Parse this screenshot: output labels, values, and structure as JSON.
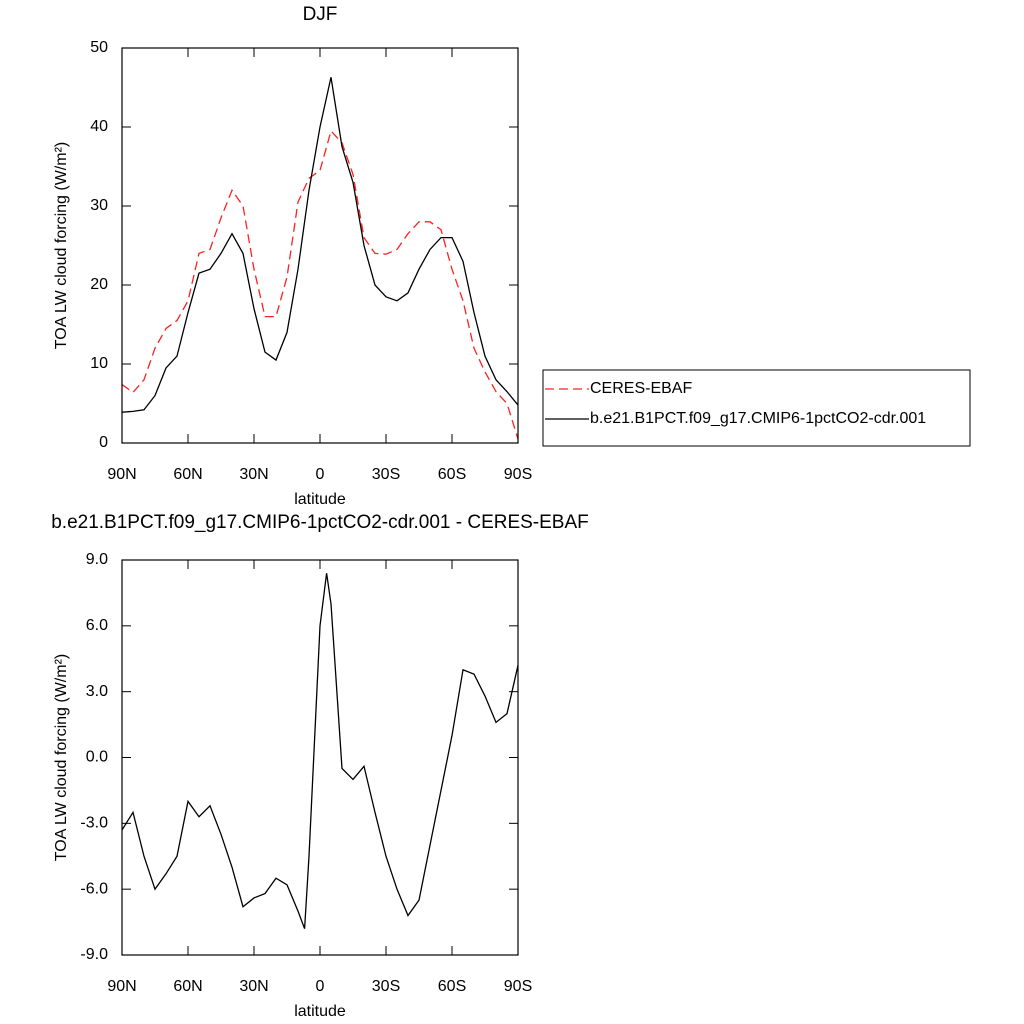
{
  "chart_data": [
    {
      "type": "line",
      "title": "DJF",
      "xlabel": "latitude",
      "ylabel": "TOA LW cloud forcing (W/m²)",
      "x": [
        90,
        85,
        80,
        75,
        70,
        65,
        60,
        55,
        50,
        45,
        40,
        35,
        30,
        25,
        20,
        15,
        10,
        5,
        0,
        -5,
        -10,
        -15,
        -20,
        -25,
        -30,
        -35,
        -40,
        -45,
        -50,
        -55,
        -60,
        -65,
        -70,
        -75,
        -80,
        -85,
        -90
      ],
      "series": [
        {
          "name": "CERES-EBAF",
          "color": "#ff2020",
          "dash": "dashed",
          "values": [
            7.4,
            6.4,
            8,
            12,
            14.5,
            15.5,
            18,
            24,
            24.5,
            28.5,
            32,
            30,
            22,
            16,
            16,
            21,
            30.5,
            33.5,
            34.5,
            39.5,
            38,
            34,
            26,
            24,
            23.9,
            24.5,
            26.5,
            28,
            28,
            27,
            22,
            18,
            12,
            9,
            6.5,
            5,
            0.5
          ]
        },
        {
          "name": "b.e21.B1PCT.f09_g17.CMIP6-1pctCO2-cdr.001",
          "color": "#000000",
          "dash": "solid",
          "values": [
            3.9,
            4.0,
            4.2,
            6,
            9.5,
            11,
            16.5,
            21.5,
            22,
            24,
            26.5,
            24,
            17,
            11.5,
            10.5,
            14,
            22,
            32,
            40,
            46.3,
            37.5,
            33,
            25,
            20,
            18.5,
            18,
            19,
            22,
            24.5,
            26,
            26,
            23,
            16.5,
            11,
            8,
            6.5,
            4.8
          ]
        }
      ],
      "xlim": [
        90,
        -90
      ],
      "xticks": [
        {
          "value": 90,
          "label": "90N"
        },
        {
          "value": 60,
          "label": "60N"
        },
        {
          "value": 30,
          "label": "30N"
        },
        0,
        {
          "value": -30,
          "label": "30S"
        },
        {
          "value": -60,
          "label": "60S"
        },
        {
          "value": -90,
          "label": "90S"
        }
      ],
      "ylim": [
        0,
        50
      ],
      "yticks": [
        0,
        10,
        20,
        30,
        40,
        50
      ],
      "legend": "right"
    },
    {
      "type": "line",
      "title": "b.e21.B1PCT.f09_g17.CMIP6-1pctCO2-cdr.001 - CERES-EBAF",
      "xlabel": "latitude",
      "ylabel": "TOA LW cloud forcing (W/m²)",
      "x": [
        90,
        85,
        80,
        75,
        70,
        65,
        60,
        55,
        50,
        45,
        40,
        35,
        30,
        25,
        20,
        15,
        10,
        7,
        5,
        0,
        -3,
        -5,
        -10,
        -15,
        -20,
        -25,
        -30,
        -35,
        -40,
        -45,
        -50,
        -55,
        -60,
        -65,
        -70,
        -75,
        -80,
        -85,
        -90
      ],
      "color": "#000000",
      "values": [
        -3.3,
        -2.5,
        -4.5,
        -6,
        -5.3,
        -4.5,
        -2.0,
        -2.7,
        -2.2,
        -3.5,
        -5.0,
        -6.8,
        -6.4,
        -6.2,
        -5.5,
        -5.8,
        -7.0,
        -7.8,
        -4.5,
        6,
        8.4,
        7,
        -0.5,
        -1.0,
        -0.4,
        -2.5,
        -4.5,
        -6.0,
        -7.2,
        -6.5,
        -4.0,
        -1.5,
        1.0,
        4.0,
        3.8,
        2.8,
        1.6,
        2.0,
        4.2
      ],
      "xlim": [
        90,
        -90
      ],
      "xticks": [
        {
          "value": 90,
          "label": "90N"
        },
        {
          "value": 60,
          "label": "60N"
        },
        {
          "value": 30,
          "label": "30N"
        },
        0,
        {
          "value": -30,
          "label": "30S"
        },
        {
          "value": -60,
          "label": "60S"
        },
        {
          "value": -90,
          "label": "90S"
        }
      ],
      "ylim": [
        -9,
        9
      ],
      "yticks": [
        {
          "value": -9,
          "label": "-9.0"
        },
        {
          "value": -6,
          "label": "-6.0"
        },
        {
          "value": -3,
          "label": "-3.0"
        },
        {
          "value": 0,
          "label": "0.0"
        },
        {
          "value": 3,
          "label": "3.0"
        },
        {
          "value": 6,
          "label": "6.0"
        },
        {
          "value": 9,
          "label": "9.0"
        }
      ]
    }
  ]
}
